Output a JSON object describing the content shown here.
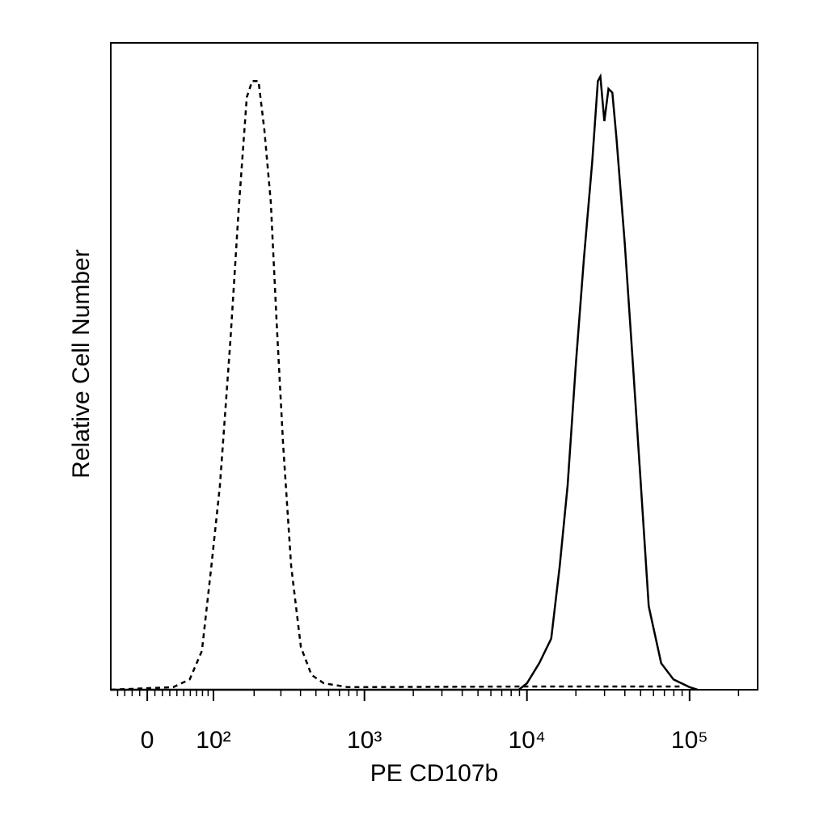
{
  "chart_data": {
    "type": "line",
    "x_label": "PE CD107b",
    "y_label": "Relative Cell Number",
    "xscale": "biexponential",
    "xlim": [
      -50,
      262144
    ],
    "ylim": [
      0,
      100
    ],
    "xticks": [
      0,
      {
        "value": 100,
        "label": "10²"
      },
      {
        "value": 1000,
        "label": "10³"
      },
      {
        "value": 10000,
        "label": "10⁴"
      },
      {
        "value": 100000,
        "label": "10⁵"
      }
    ],
    "xminorticks": [
      -40,
      -30,
      -20,
      -10,
      10,
      20,
      30,
      40,
      50,
      60,
      70,
      80,
      90,
      200,
      300,
      400,
      500,
      600,
      700,
      800,
      900,
      2000,
      3000,
      4000,
      5000,
      6000,
      7000,
      8000,
      9000,
      20000,
      30000,
      40000,
      50000,
      60000,
      70000,
      80000,
      90000,
      200000
    ],
    "series": [
      {
        "color": "#000000",
        "style": "dashed",
        "x": [
          -50,
          35,
          59,
          79,
          96,
          113,
          136,
          156,
          178,
          194,
          214,
          234,
          258,
          282,
          310,
          349,
          402,
          469,
          560,
          790,
          10000,
          88800
        ],
        "values": [
          0,
          0.4,
          1.6,
          6,
          19.1,
          31.6,
          54.1,
          74.1,
          91.6,
          94.1,
          94.1,
          86.6,
          75.4,
          56.6,
          38,
          19.1,
          6.6,
          2.3,
          1,
          0.4,
          0.5,
          0.5
        ]
      },
      {
        "color": "#000000",
        "style": "solid",
        "x": [
          -50,
          8920,
          10000,
          11900,
          14100,
          15900,
          17800,
          20000,
          22400,
          25200,
          27300,
          28300,
          29900,
          31700,
          33500,
          35500,
          39900,
          44800,
          50200,
          56100,
          66900,
          79600,
          100000,
          112000
        ],
        "values": [
          0,
          0,
          1,
          4.1,
          7.9,
          19.1,
          31.6,
          50.4,
          66.6,
          81.6,
          94.1,
          94.8,
          87.9,
          92.9,
          92.3,
          85.4,
          69.1,
          50.4,
          31.6,
          12.9,
          4.1,
          1.6,
          0.4,
          0
        ]
      }
    ]
  }
}
